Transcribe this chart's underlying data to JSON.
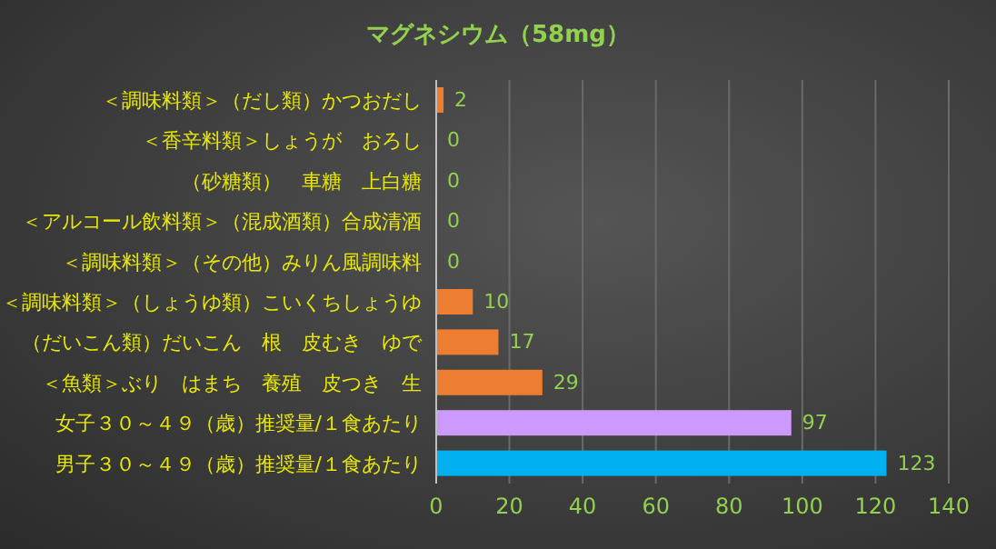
{
  "chart_data": {
    "type": "bar",
    "orientation": "horizontal",
    "title": "マグネシウム（58mg）",
    "categories": [
      "＜調味料類＞（だし類）かつおだし",
      "＜香辛料類＞しょうが　おろし",
      "（砂糖類）　車糖　上白糖",
      "＜アルコール飲料類＞（混成酒類）合成清酒",
      "＜調味料類＞（その他）みりん風調味料",
      "＜調味料類＞（しょうゆ類）こいくちしょうゆ",
      "（だいこん類）だいこん　根　皮むき　ゆで",
      "＜魚類＞ぶり　はまち　養殖　皮つき　生",
      "女子３０～４９（歳）推奨量/１食あたり",
      "男子３０～４９（歳）推奨量/１食あたり"
    ],
    "values": [
      2,
      0,
      0,
      0,
      0,
      10,
      17,
      29,
      97,
      123
    ],
    "colors": [
      "#ed7d31",
      "#ed7d31",
      "#ed7d31",
      "#ed7d31",
      "#ed7d31",
      "#ed7d31",
      "#ed7d31",
      "#ed7d31",
      "#cc99ff",
      "#00b0f0"
    ],
    "xlim": [
      0,
      140
    ],
    "xticks": [
      0,
      20,
      40,
      60,
      80,
      100,
      120,
      140
    ],
    "grid": "x",
    "data_labels": true
  }
}
